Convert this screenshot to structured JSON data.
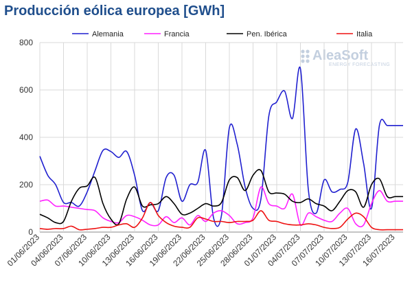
{
  "chart_data": {
    "type": "line",
    "title": "Producción eólica europea [GWh]",
    "xlabel": "",
    "ylabel": "",
    "ylim": [
      0,
      800
    ],
    "yticks": [
      0,
      200,
      400,
      600,
      800
    ],
    "grid": true,
    "legend_position": "top",
    "x": [
      "2023-06-01",
      "2023-06-02",
      "2023-06-03",
      "2023-06-04",
      "2023-06-05",
      "2023-06-06",
      "2023-06-07",
      "2023-06-08",
      "2023-06-09",
      "2023-06-10",
      "2023-06-11",
      "2023-06-12",
      "2023-06-13",
      "2023-06-14",
      "2023-06-15",
      "2023-06-16",
      "2023-06-17",
      "2023-06-18",
      "2023-06-19",
      "2023-06-20",
      "2023-06-21",
      "2023-06-22",
      "2023-06-23",
      "2023-06-24",
      "2023-06-25",
      "2023-06-26",
      "2023-06-27",
      "2023-06-28",
      "2023-06-29",
      "2023-06-30",
      "2023-07-01",
      "2023-07-02",
      "2023-07-03",
      "2023-07-04",
      "2023-07-05",
      "2023-07-06",
      "2023-07-07",
      "2023-07-08",
      "2023-07-09",
      "2023-07-10",
      "2023-07-11",
      "2023-07-12",
      "2023-07-13",
      "2023-07-14",
      "2023-07-15",
      "2023-07-16",
      "2023-07-17"
    ],
    "xtick_labels": [
      "01/06/2023",
      "04/06/2023",
      "07/06/2023",
      "10/06/2023",
      "13/06/2023",
      "16/06/2023",
      "19/06/2023",
      "22/06/2023",
      "25/06/2023",
      "28/06/2023",
      "01/07/2023",
      "04/07/2023",
      "07/07/2023",
      "10/07/2023",
      "13/07/2023",
      "16/07/2023"
    ],
    "series": [
      {
        "name": "Alemania",
        "color": "#1f1fcf",
        "values": [
          320,
          240,
          200,
          125,
          125,
          110,
          170,
          260,
          345,
          340,
          315,
          340,
          240,
          90,
          125,
          90,
          230,
          240,
          130,
          200,
          210,
          345,
          60,
          70,
          440,
          370,
          190,
          100,
          140,
          490,
          550,
          595,
          480,
          690,
          180,
          80,
          220,
          170,
          180,
          210,
          435,
          290,
          100,
          450,
          450,
          450,
          450
        ]
      },
      {
        "name": "Francia",
        "color": "#ff1fff",
        "values": [
          130,
          135,
          110,
          110,
          105,
          100,
          95,
          90,
          60,
          45,
          40,
          70,
          65,
          50,
          30,
          30,
          65,
          40,
          60,
          30,
          70,
          45,
          80,
          90,
          70,
          35,
          40,
          60,
          190,
          120,
          110,
          100,
          160,
          30,
          80,
          65,
          50,
          45,
          80,
          100,
          35,
          30,
          120,
          175,
          130,
          130,
          130
        ]
      },
      {
        "name": "Pen. Ibérica",
        "color": "#000000",
        "values": [
          75,
          60,
          40,
          45,
          130,
          185,
          195,
          230,
          120,
          55,
          35,
          140,
          190,
          110,
          115,
          120,
          150,
          120,
          75,
          80,
          100,
          120,
          110,
          125,
          220,
          230,
          175,
          240,
          260,
          170,
          165,
          160,
          130,
          125,
          140,
          120,
          110,
          90,
          130,
          175,
          170,
          105,
          200,
          225,
          150,
          150,
          150
        ]
      },
      {
        "name": "Italia",
        "color": "#ee1111",
        "values": [
          15,
          12,
          15,
          15,
          25,
          10,
          12,
          15,
          20,
          20,
          30,
          35,
          20,
          60,
          125,
          70,
          40,
          25,
          20,
          20,
          60,
          55,
          45,
          45,
          40,
          45,
          45,
          50,
          90,
          50,
          45,
          35,
          30,
          30,
          35,
          30,
          20,
          15,
          20,
          55,
          80,
          65,
          20,
          10,
          10,
          10,
          10
        ]
      }
    ]
  },
  "watermark": {
    "brand": "AleaSoft",
    "tagline": "ENERGY FORECASTING"
  }
}
